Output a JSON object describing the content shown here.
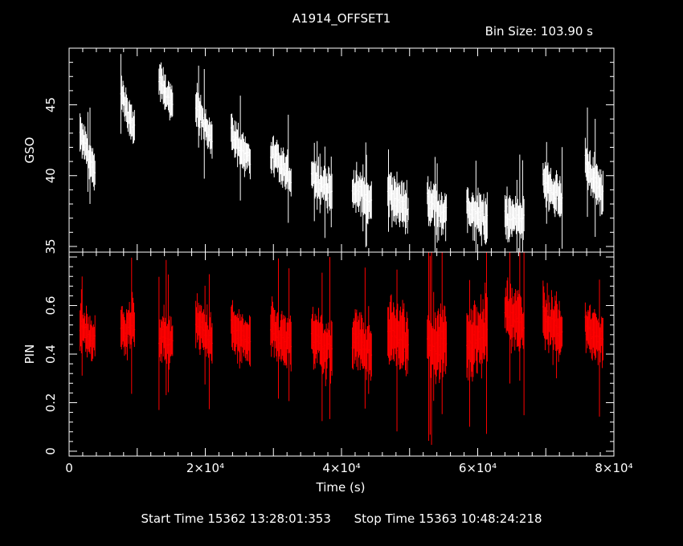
{
  "chart_data": {
    "type": "line",
    "title": "A1914_OFFSET1",
    "bin_size_label": "Bin Size:  103.90  s",
    "xlabel": "Time (s)",
    "xlim": [
      0,
      80000
    ],
    "x_ticks": [
      {
        "value": 0,
        "label": "0"
      },
      {
        "value": 20000,
        "label": "2×10⁴"
      },
      {
        "value": 40000,
        "label": "4×10⁴"
      },
      {
        "value": 60000,
        "label": "6×10⁴"
      },
      {
        "value": 80000,
        "label": "8×10⁴"
      }
    ],
    "panels": [
      {
        "name": "GSO",
        "ylabel": "GSO",
        "color": "#ffffff",
        "ylim": [
          34.6,
          49.0
        ],
        "y_ticks": [
          {
            "value": 35,
            "label": "35"
          },
          {
            "value": 40,
            "label": "40"
          },
          {
            "value": 45,
            "label": "45"
          }
        ],
        "segments": [
          {
            "x": [
              1600,
              3800
            ],
            "y": [
              43.0,
              40.2
            ],
            "err": 0.9
          },
          {
            "x": [
              7600,
              9600
            ],
            "y": [
              45.8,
              43.2
            ],
            "err": 0.9
          },
          {
            "x": [
              13200,
              15200
            ],
            "y": [
              46.8,
              44.8
            ],
            "err": 0.9
          },
          {
            "x": [
              18600,
              21000
            ],
            "y": [
              45.0,
              42.5
            ],
            "err": 0.9
          },
          {
            "x": [
              23800,
              26600
            ],
            "y": [
              43.0,
              41.0
            ],
            "err": 0.9
          },
          {
            "x": [
              29600,
              32600
            ],
            "y": [
              41.5,
              39.8
            ],
            "err": 0.9
          },
          {
            "x": [
              35600,
              38600
            ],
            "y": [
              40.0,
              38.8
            ],
            "err": 1.0
          },
          {
            "x": [
              41600,
              44400
            ],
            "y": [
              39.2,
              38.0
            ],
            "err": 1.0
          },
          {
            "x": [
              46800,
              49800
            ],
            "y": [
              38.8,
              37.6
            ],
            "err": 1.1
          },
          {
            "x": [
              52600,
              55400
            ],
            "y": [
              38.2,
              37.3
            ],
            "err": 1.1
          },
          {
            "x": [
              58400,
              61400
            ],
            "y": [
              37.5,
              36.8
            ],
            "err": 1.1
          },
          {
            "x": [
              64000,
              66800
            ],
            "y": [
              37.2,
              37.0
            ],
            "err": 1.1
          },
          {
            "x": [
              69600,
              72400
            ],
            "y": [
              39.6,
              38.2
            ],
            "err": 1.0
          },
          {
            "x": [
              75800,
              78400
            ],
            "y": [
              41.0,
              38.6
            ],
            "err": 1.0
          }
        ]
      },
      {
        "name": "PIN",
        "ylabel": "PIN",
        "color": "#ff0000",
        "ylim": [
          -0.02,
          0.82
        ],
        "y_ticks": [
          {
            "value": 0,
            "label": "0"
          },
          {
            "value": 0.2,
            "label": "0.2"
          },
          {
            "value": 0.4,
            "label": "0.4"
          },
          {
            "value": 0.6,
            "label": "0.6"
          }
        ],
        "segments": [
          {
            "x": [
              1600,
              3800
            ],
            "y": [
              0.52,
              0.45
            ],
            "err": 0.06
          },
          {
            "x": [
              7600,
              9600
            ],
            "y": [
              0.5,
              0.52
            ],
            "err": 0.07
          },
          {
            "x": [
              13200,
              15200
            ],
            "y": [
              0.48,
              0.46
            ],
            "err": 0.07
          },
          {
            "x": [
              18600,
              21000
            ],
            "y": [
              0.52,
              0.46
            ],
            "err": 0.07
          },
          {
            "x": [
              23800,
              26600
            ],
            "y": [
              0.5,
              0.44
            ],
            "err": 0.07
          },
          {
            "x": [
              29600,
              32600
            ],
            "y": [
              0.5,
              0.44
            ],
            "err": 0.07
          },
          {
            "x": [
              35600,
              38600
            ],
            "y": [
              0.48,
              0.4
            ],
            "err": 0.08
          },
          {
            "x": [
              41600,
              44400
            ],
            "y": [
              0.46,
              0.42
            ],
            "err": 0.08
          },
          {
            "x": [
              46800,
              49800
            ],
            "y": [
              0.5,
              0.44
            ],
            "err": 0.09
          },
          {
            "x": [
              52600,
              55400
            ],
            "y": [
              0.44,
              0.46
            ],
            "err": 0.1
          },
          {
            "x": [
              58400,
              61400
            ],
            "y": [
              0.44,
              0.5
            ],
            "err": 0.1
          },
          {
            "x": [
              64000,
              66800
            ],
            "y": [
              0.58,
              0.52
            ],
            "err": 0.08
          },
          {
            "x": [
              69600,
              72400
            ],
            "y": [
              0.55,
              0.48
            ],
            "err": 0.08
          },
          {
            "x": [
              75800,
              78400
            ],
            "y": [
              0.5,
              0.46
            ],
            "err": 0.07
          }
        ]
      }
    ]
  },
  "footer": {
    "start": "Start Time 15362  13:28:01:353",
    "stop": "Stop Time 15363  10:48:24:218"
  }
}
